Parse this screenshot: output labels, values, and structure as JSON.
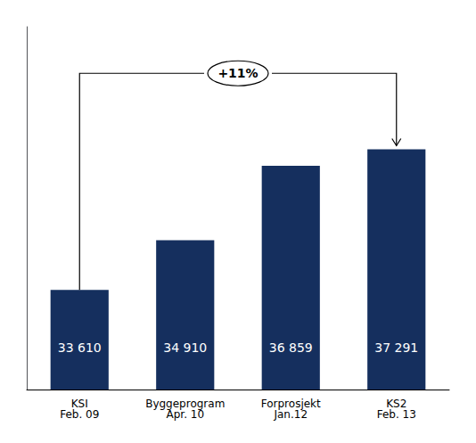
{
  "chart_data": {
    "type": "bar",
    "categories": [
      "KSI\nFeb. 09",
      "Byggeprogram\nApr. 10",
      "Forprosjekt\nJan.12",
      "KS2\nFeb. 13"
    ],
    "values": [
      33610,
      34910,
      36859,
      37291
    ],
    "value_labels": [
      "33 610",
      "34 910",
      "36 859",
      "37 291"
    ],
    "data_labels": true,
    "color": "#152f5e",
    "ylim": [
      31000,
      40500
    ],
    "tick_labels": "x",
    "grid": false,
    "annotation": "+11%"
  }
}
